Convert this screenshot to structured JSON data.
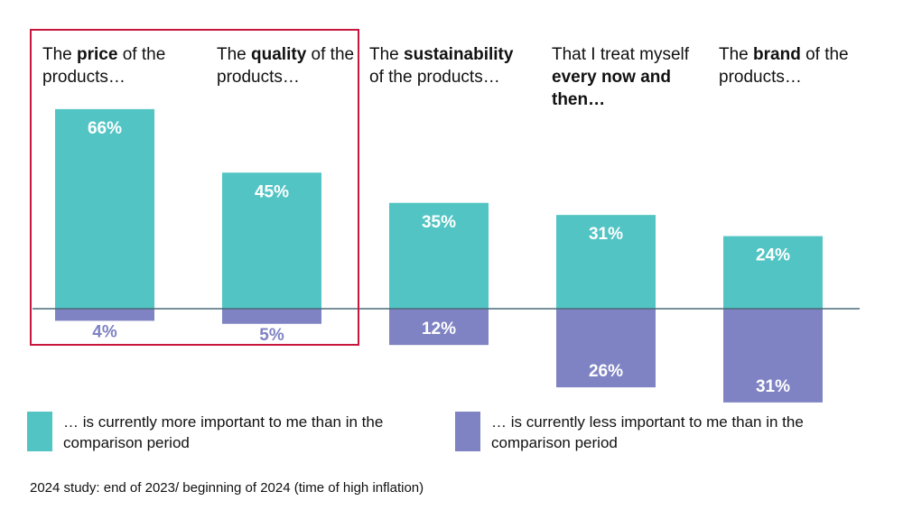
{
  "chart_data": {
    "type": "bar",
    "categories": [
      {
        "pre": "The ",
        "bold": "price",
        "post": " of the products…"
      },
      {
        "pre": "The ",
        "bold": "quality",
        "post": " of the products…"
      },
      {
        "pre": "The ",
        "bold": "sustainability",
        "post": " of the products…"
      },
      {
        "pre": "That I treat myself ",
        "bold": "every now and then…",
        "post": ""
      },
      {
        "pre": "The ",
        "bold": "brand",
        "post": " of the products…"
      }
    ],
    "series": [
      {
        "name": "… is currently more important to me than in the comparison period",
        "values": [
          66,
          45,
          35,
          31,
          24
        ],
        "labels": [
          "66%",
          "45%",
          "35%",
          "31%",
          "24%"
        ],
        "color": "#52c4c4"
      },
      {
        "name": "… is currently less important to me than in the comparison period",
        "values": [
          4,
          5,
          12,
          26,
          31
        ],
        "labels": [
          "4%",
          "5%",
          "12%",
          "26%",
          "31%"
        ],
        "color": "#7f83c3"
      }
    ],
    "highlight": {
      "categories": [
        0,
        1
      ],
      "color": "#c8163c"
    },
    "baseline_color": "#4a6b78"
  },
  "legend": {
    "more": "… is currently more important to me than in the comparison period",
    "less": "… is currently less important to me than in the comparison period"
  },
  "footnote": "2024 study: end of 2023/ beginning of 2024 (time of high inflation)"
}
